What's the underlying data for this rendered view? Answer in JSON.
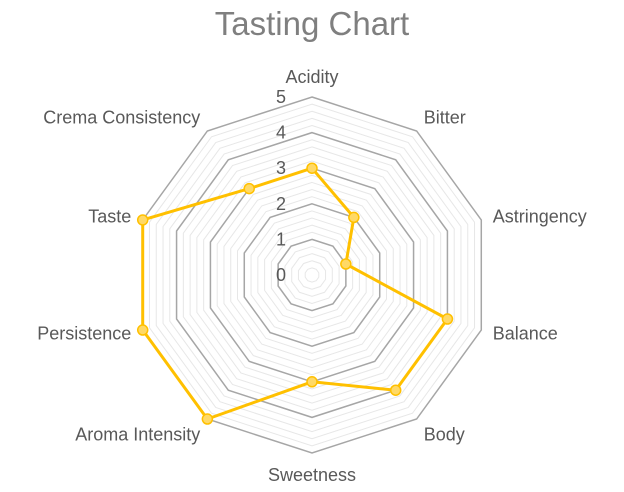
{
  "chart_data": {
    "type": "radar",
    "title": "Tasting Chart",
    "categories": [
      "Acidity",
      "Bitter",
      "Astringency",
      "Balance",
      "Body",
      "Sweetness",
      "Aroma Intensity",
      "Persistence",
      "Taste",
      "Crema Consistency"
    ],
    "series": [
      {
        "values": [
          3,
          2,
          1,
          4,
          4,
          3,
          5,
          5,
          5,
          3
        ]
      }
    ],
    "rlim": [
      0,
      5
    ],
    "ticks": [
      "0",
      "1",
      "2",
      "3",
      "4",
      "5"
    ],
    "grid": true,
    "colors": {
      "series": "#FFC000",
      "marker_fill": "#FFD966",
      "major_grid": "#A6A6A6",
      "minor_grid": "#E7E7E7",
      "title": "#7F7F7F",
      "labels": "#595959"
    }
  }
}
